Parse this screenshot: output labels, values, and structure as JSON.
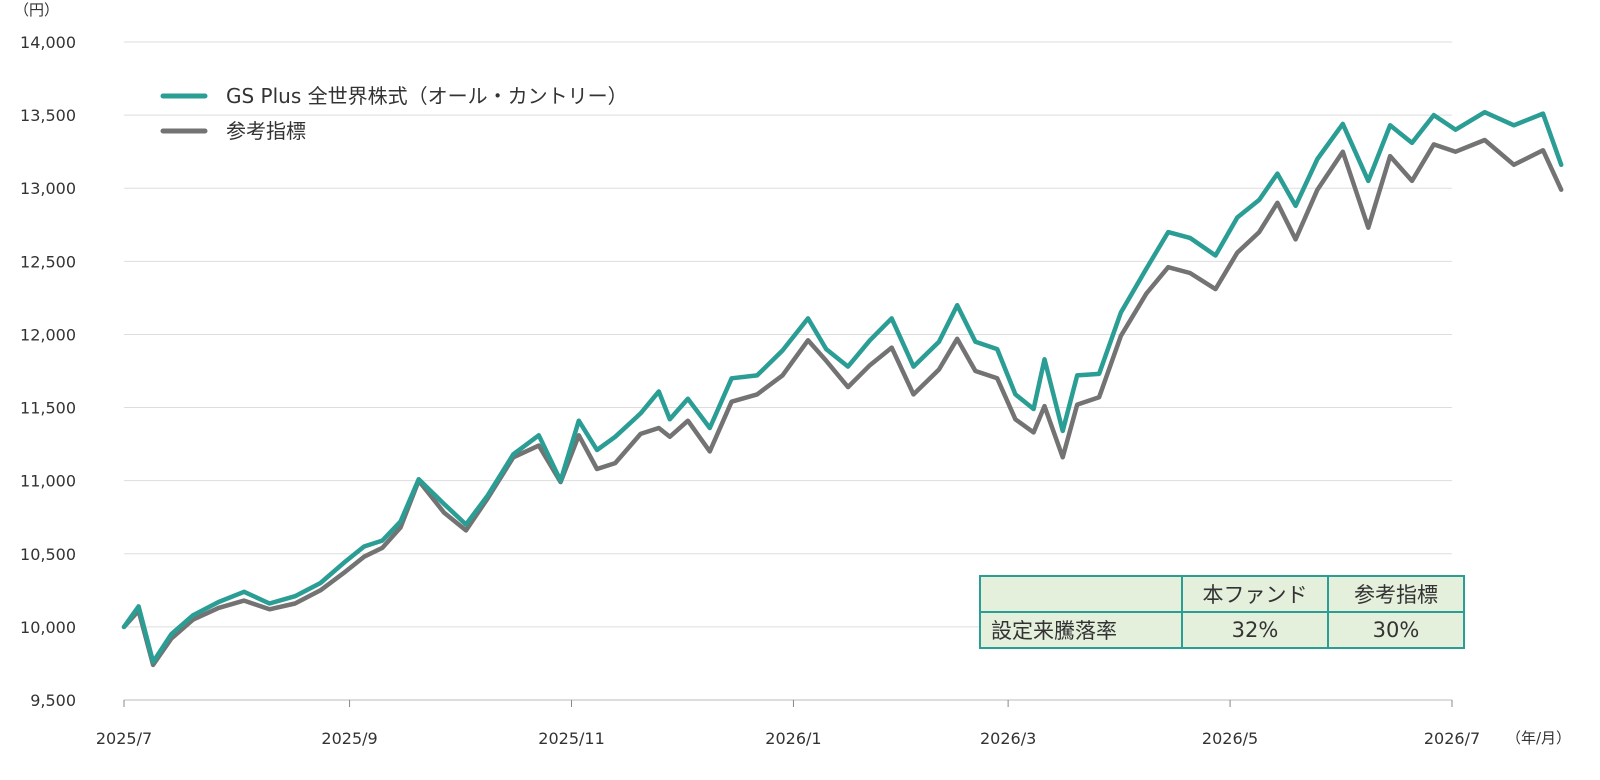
{
  "chart_data": {
    "type": "line",
    "unit_label": "（円）",
    "x_unit_label": "（年/月）",
    "y_ticks": [
      "14,000",
      "13,500",
      "13,000",
      "12,500",
      "12,000",
      "11,500",
      "11,000",
      "10,500",
      "10,000",
      "9,500"
    ],
    "ylim": [
      9500,
      14000
    ],
    "x_ticks": [
      "2025/7",
      "2025/9",
      "2025/11",
      "2026/1",
      "2026/3",
      "2026/5",
      "2026/7"
    ],
    "grid": true,
    "legend_position": "top-left",
    "series": [
      {
        "name": "GS Plus 全世界株式（オール・カントリー）",
        "color": "#2a9d94",
        "points": [
          [
            "2025/7/1",
            10000
          ],
          [
            "2025/7/5",
            10140
          ],
          [
            "2025/7/9",
            9760
          ],
          [
            "2025/7/14",
            9950
          ],
          [
            "2025/7/20",
            10080
          ],
          [
            "2025/7/27",
            10170
          ],
          [
            "2025/8/3",
            10240
          ],
          [
            "2025/8/10",
            10160
          ],
          [
            "2025/8/17",
            10210
          ],
          [
            "2025/8/24",
            10300
          ],
          [
            "2025/8/31",
            10450
          ],
          [
            "2025/9/5",
            10550
          ],
          [
            "2025/9/10",
            10590
          ],
          [
            "2025/9/15",
            10720
          ],
          [
            "2025/9/20",
            11010
          ],
          [
            "2025/9/27",
            10840
          ],
          [
            "2025/10/3",
            10700
          ],
          [
            "2025/10/9",
            10900
          ],
          [
            "2025/10/16",
            11180
          ],
          [
            "2025/10/23",
            11310
          ],
          [
            "2025/10/29",
            11000
          ],
          [
            "2025/11/3",
            11410
          ],
          [
            "2025/11/8",
            11210
          ],
          [
            "2025/11/13",
            11300
          ],
          [
            "2025/11/20",
            11460
          ],
          [
            "2025/11/25",
            11610
          ],
          [
            "2025/11/28",
            11420
          ],
          [
            "2025/12/3",
            11560
          ],
          [
            "2025/12/9",
            11360
          ],
          [
            "2025/12/15",
            11700
          ],
          [
            "2025/12/22",
            11720
          ],
          [
            "2025/12/29",
            11890
          ],
          [
            "2026/1/5",
            12110
          ],
          [
            "2026/1/10",
            11900
          ],
          [
            "2026/1/16",
            11780
          ],
          [
            "2026/1/22",
            11960
          ],
          [
            "2026/1/28",
            12110
          ],
          [
            "2026/2/3",
            11780
          ],
          [
            "2026/2/10",
            11950
          ],
          [
            "2026/2/15",
            12200
          ],
          [
            "2026/2/20",
            11950
          ],
          [
            "2026/2/26",
            11900
          ],
          [
            "2026/3/3",
            11590
          ],
          [
            "2026/3/8",
            11490
          ],
          [
            "2026/3/11",
            11830
          ],
          [
            "2026/3/16",
            11340
          ],
          [
            "2026/3/20",
            11720
          ],
          [
            "2026/3/26",
            11730
          ],
          [
            "2026/4/1",
            12150
          ],
          [
            "2026/4/8",
            12450
          ],
          [
            "2026/4/14",
            12700
          ],
          [
            "2026/4/20",
            12660
          ],
          [
            "2026/4/27",
            12540
          ],
          [
            "2026/5/3",
            12800
          ],
          [
            "2026/5/9",
            12920
          ],
          [
            "2026/5/14",
            13100
          ],
          [
            "2026/5/19",
            12880
          ],
          [
            "2026/5/25",
            13200
          ],
          [
            "2026/6/1",
            13440
          ],
          [
            "2026/6/8",
            13050
          ],
          [
            "2026/6/14",
            13430
          ],
          [
            "2026/6/20",
            13310
          ],
          [
            "2026/6/26",
            13500
          ],
          [
            "2026/7/2",
            13400
          ],
          [
            "2026/7/10",
            13520
          ],
          [
            "2026/7/18",
            13430
          ],
          [
            "2026/7/26",
            13510
          ],
          [
            "2026/7/31",
            13160
          ]
        ]
      },
      {
        "name": "参考指標",
        "color": "#737373",
        "points": [
          [
            "2025/7/1",
            10000
          ],
          [
            "2025/7/5",
            10110
          ],
          [
            "2025/7/9",
            9740
          ],
          [
            "2025/7/14",
            9920
          ],
          [
            "2025/7/20",
            10050
          ],
          [
            "2025/7/27",
            10130
          ],
          [
            "2025/8/3",
            10180
          ],
          [
            "2025/8/10",
            10120
          ],
          [
            "2025/8/17",
            10160
          ],
          [
            "2025/8/24",
            10250
          ],
          [
            "2025/8/31",
            10380
          ],
          [
            "2025/9/5",
            10480
          ],
          [
            "2025/9/10",
            10540
          ],
          [
            "2025/9/15",
            10680
          ],
          [
            "2025/9/20",
            11000
          ],
          [
            "2025/9/27",
            10780
          ],
          [
            "2025/10/3",
            10660
          ],
          [
            "2025/10/9",
            10880
          ],
          [
            "2025/10/16",
            11160
          ],
          [
            "2025/10/23",
            11240
          ],
          [
            "2025/10/29",
            10990
          ],
          [
            "2025/11/3",
            11310
          ],
          [
            "2025/11/8",
            11080
          ],
          [
            "2025/11/13",
            11120
          ],
          [
            "2025/11/20",
            11320
          ],
          [
            "2025/11/25",
            11360
          ],
          [
            "2025/11/28",
            11300
          ],
          [
            "2025/12/3",
            11410
          ],
          [
            "2025/12/9",
            11200
          ],
          [
            "2025/12/15",
            11540
          ],
          [
            "2025/12/22",
            11590
          ],
          [
            "2025/12/29",
            11720
          ],
          [
            "2026/1/5",
            11960
          ],
          [
            "2026/1/10",
            11820
          ],
          [
            "2026/1/16",
            11640
          ],
          [
            "2026/1/22",
            11790
          ],
          [
            "2026/1/28",
            11910
          ],
          [
            "2026/2/3",
            11590
          ],
          [
            "2026/2/10",
            11760
          ],
          [
            "2026/2/15",
            11970
          ],
          [
            "2026/2/20",
            11750
          ],
          [
            "2026/2/26",
            11700
          ],
          [
            "2026/3/3",
            11420
          ],
          [
            "2026/3/8",
            11330
          ],
          [
            "2026/3/11",
            11510
          ],
          [
            "2026/3/16",
            11160
          ],
          [
            "2026/3/20",
            11520
          ],
          [
            "2026/3/26",
            11570
          ],
          [
            "2026/4/1",
            11990
          ],
          [
            "2026/4/8",
            12280
          ],
          [
            "2026/4/14",
            12460
          ],
          [
            "2026/4/20",
            12420
          ],
          [
            "2026/4/27",
            12310
          ],
          [
            "2026/5/3",
            12560
          ],
          [
            "2026/5/9",
            12700
          ],
          [
            "2026/5/14",
            12900
          ],
          [
            "2026/5/19",
            12650
          ],
          [
            "2026/5/25",
            12990
          ],
          [
            "2026/6/1",
            13250
          ],
          [
            "2026/6/8",
            12730
          ],
          [
            "2026/6/14",
            13220
          ],
          [
            "2026/6/20",
            13050
          ],
          [
            "2026/6/26",
            13300
          ],
          [
            "2026/7/2",
            13250
          ],
          [
            "2026/7/10",
            13330
          ],
          [
            "2026/7/18",
            13160
          ],
          [
            "2026/7/26",
            13260
          ],
          [
            "2026/7/31",
            12990
          ]
        ]
      }
    ]
  },
  "table": {
    "headers": [
      "",
      "本ファンド",
      "参考指標"
    ],
    "row_label": "設定来騰落率",
    "values": [
      "32%",
      "30%"
    ]
  }
}
